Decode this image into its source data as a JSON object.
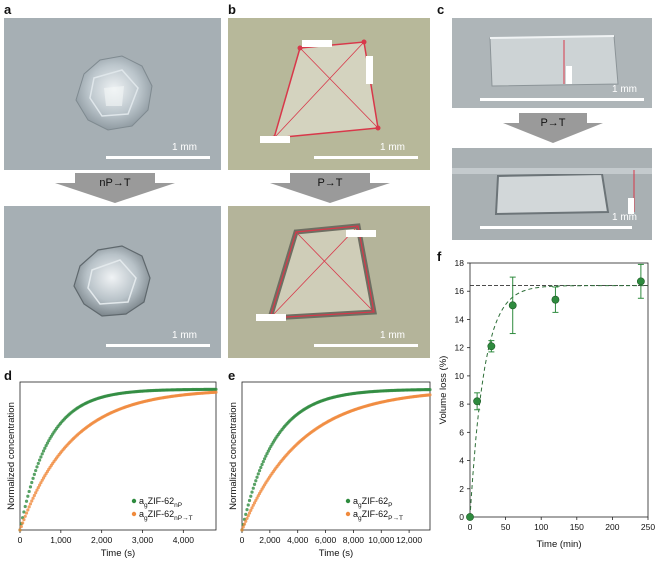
{
  "panels": {
    "a": {
      "letter": "a",
      "arrow": "nP→T",
      "scale": "1 mm"
    },
    "b": {
      "letter": "b",
      "arrow": "P→T",
      "scale": "1 mm"
    },
    "c": {
      "letter": "c",
      "arrow": "P→T",
      "scale": "1 mm"
    },
    "d": {
      "letter": "d"
    },
    "e": {
      "letter": "e"
    },
    "f": {
      "letter": "f"
    }
  },
  "chart_data": [
    {
      "id": "d",
      "type": "scatter",
      "xlabel": "Time (s)",
      "ylabel": "Normalized concentration",
      "xlim": [
        0,
        4800
      ],
      "ylim": [
        0,
        1.03
      ],
      "xticks": [
        0,
        1000,
        2000,
        3000,
        4000
      ],
      "xticklabels": [
        "0",
        "1,000",
        "2,000",
        "3,000",
        "4,000"
      ],
      "series": [
        {
          "name": "agZIF-62nP",
          "base": "a",
          "sub": "g",
          "main": "ZIF-62",
          "sub2": "nP",
          "color": "#2e8b3e",
          "tau": 700
        },
        {
          "name": "agZIF-62nP→T",
          "base": "a",
          "sub": "g",
          "main": "ZIF-62",
          "sub2": "nP→T",
          "color": "#f08a3c",
          "tau": 1250
        }
      ],
      "legend": "bottom-right"
    },
    {
      "id": "e",
      "type": "scatter",
      "xlabel": "Time (s)",
      "ylabel": "Normalized concentration",
      "xlim": [
        0,
        13500
      ],
      "ylim": [
        0,
        1.03
      ],
      "xticks": [
        0,
        2000,
        4000,
        6000,
        8000,
        10000,
        12000
      ],
      "xticklabels": [
        "0",
        "2,000",
        "4,000",
        "6,000",
        "8,000",
        "10,000",
        "12,000"
      ],
      "series": [
        {
          "name": "agZIF-62P",
          "base": "a",
          "sub": "g",
          "main": "ZIF-62",
          "sub2": "P",
          "color": "#2e8b3e",
          "tau": 2300
        },
        {
          "name": "agZIF-62P→T",
          "base": "a",
          "sub": "g",
          "main": "ZIF-62",
          "sub2": "P→T",
          "color": "#f08a3c",
          "tau": 4200
        }
      ],
      "legend": "bottom-right"
    },
    {
      "id": "f",
      "type": "scatter",
      "xlabel": "Time (min)",
      "ylabel": "Volume loss (%)",
      "xlim": [
        0,
        250
      ],
      "ylim": [
        0,
        18
      ],
      "xticks": [
        0,
        50,
        100,
        150,
        200,
        250
      ],
      "yticks": [
        0,
        2,
        4,
        6,
        8,
        10,
        12,
        14,
        16,
        18
      ],
      "points": [
        {
          "x": 0,
          "y": 0,
          "err": 0
        },
        {
          "x": 10,
          "y": 8.2,
          "err": 0.6
        },
        {
          "x": 30,
          "y": 12.1,
          "err": 0.4
        },
        {
          "x": 60,
          "y": 15,
          "err": 2
        },
        {
          "x": 120,
          "y": 15.4,
          "err": 0.9
        },
        {
          "x": 240,
          "y": 16.7,
          "err": 1.2
        }
      ],
      "plateau": 16.4,
      "color": "#2e8b3e"
    }
  ]
}
